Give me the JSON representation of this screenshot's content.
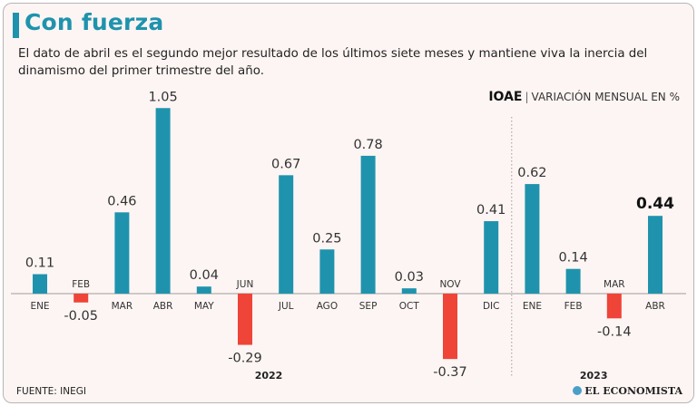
{
  "header": {
    "title": "Con fuerza",
    "subtitle": "El dato de abril es el segundo mejor resultado de los últimos siete meses y mantiene viva la inercia del dinamismo del primer trimestre del año.",
    "indicator_code": "IOAE",
    "indicator_separator": "|",
    "indicator_desc": "VARIACIÓN MENSUAL EN %"
  },
  "footer": {
    "source": "FUENTE: INEGI",
    "brand": "EL ECONOMISTA"
  },
  "colors": {
    "positive": "#1f93ad",
    "negative": "#ef4438",
    "accent": "#1f93ad",
    "background": "#fdf5f3"
  },
  "chart_data": {
    "type": "bar",
    "title": "IOAE",
    "ylabel": "Variación mensual en %",
    "categories": [
      "ENE",
      "FEB",
      "MAR",
      "ABR",
      "MAY",
      "JUN",
      "JUL",
      "AGO",
      "SEP",
      "OCT",
      "NOV",
      "DIC",
      "ENE",
      "FEB",
      "MAR",
      "ABR"
    ],
    "values": [
      0.11,
      -0.05,
      0.46,
      1.05,
      0.04,
      -0.29,
      0.67,
      0.25,
      0.78,
      0.03,
      -0.37,
      0.41,
      0.62,
      0.14,
      -0.14,
      0.44
    ],
    "value_labels": [
      "0.11",
      "-0.05",
      "0.46",
      "1.05",
      "0.04",
      "-0.29",
      "0.67",
      "0.25",
      "0.78",
      "0.03",
      "-0.37",
      "0.41",
      "0.62",
      "0.14",
      "-0.14",
      "0.44"
    ],
    "highlight_index": 15,
    "year_groups": [
      {
        "label": "2022",
        "start": 0,
        "end": 11
      },
      {
        "label": "2023",
        "start": 12,
        "end": 15
      }
    ],
    "ylim": [
      -0.37,
      1.05
    ]
  }
}
